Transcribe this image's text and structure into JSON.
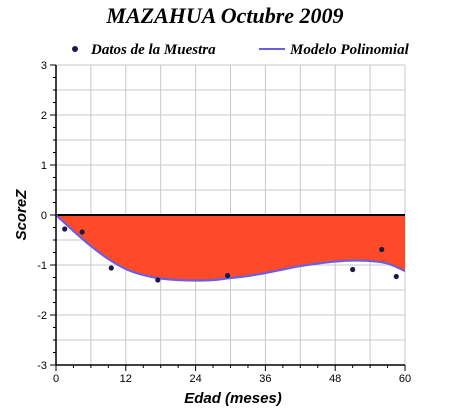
{
  "chart_data": {
    "type": "line",
    "title": "MAZAHUA Octubre 2009",
    "xlabel": "Edad (meses)",
    "ylabel": "ScoreZ",
    "xlim": [
      0,
      60
    ],
    "ylim": [
      -3,
      3
    ],
    "x_ticks": [
      "0",
      "12",
      "24",
      "36",
      "48",
      "60"
    ],
    "y_ticks": [
      "3",
      "2",
      "1",
      "0",
      "-1",
      "-2",
      "-3"
    ],
    "grid": true,
    "legend_position": "top",
    "series": [
      {
        "name": "Datos de la Muestra",
        "kind": "scatter",
        "color": "#1a1a4a",
        "points": [
          {
            "x": 1.5,
            "y": -0.28
          },
          {
            "x": 4.5,
            "y": -0.34
          },
          {
            "x": 9.5,
            "y": -1.06
          },
          {
            "x": 17.5,
            "y": -1.3
          },
          {
            "x": 29.5,
            "y": -1.21
          },
          {
            "x": 51,
            "y": -1.09
          },
          {
            "x": 56,
            "y": -0.69
          },
          {
            "x": 58.5,
            "y": -1.23
          }
        ]
      },
      {
        "name": "Modelo Polinomial",
        "kind": "line",
        "color": "#6a5fe0",
        "points": [
          {
            "x": 0,
            "y": 0
          },
          {
            "x": 3,
            "y": -0.32
          },
          {
            "x": 6,
            "y": -0.62
          },
          {
            "x": 9,
            "y": -0.88
          },
          {
            "x": 12,
            "y": -1.08
          },
          {
            "x": 15,
            "y": -1.2
          },
          {
            "x": 18,
            "y": -1.27
          },
          {
            "x": 21,
            "y": -1.3
          },
          {
            "x": 24,
            "y": -1.31
          },
          {
            "x": 27,
            "y": -1.3
          },
          {
            "x": 30,
            "y": -1.26
          },
          {
            "x": 33,
            "y": -1.22
          },
          {
            "x": 36,
            "y": -1.16
          },
          {
            "x": 39,
            "y": -1.09
          },
          {
            "x": 42,
            "y": -1.02
          },
          {
            "x": 45,
            "y": -0.97
          },
          {
            "x": 48,
            "y": -0.93
          },
          {
            "x": 51,
            "y": -0.91
          },
          {
            "x": 54,
            "y": -0.92
          },
          {
            "x": 57,
            "y": -0.97
          },
          {
            "x": 60,
            "y": -1.12
          }
        ]
      }
    ],
    "fill_to_zero_color": "#ff4a2a",
    "zero_line_color": "#000000"
  }
}
